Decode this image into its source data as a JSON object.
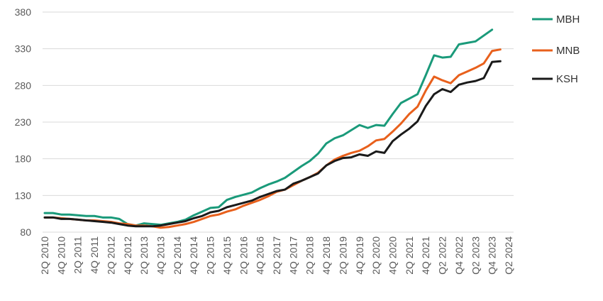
{
  "chart_data": {
    "type": "line",
    "title": "",
    "xlabel": "",
    "ylabel": "",
    "ylim": [
      80,
      380
    ],
    "yticks": [
      80,
      130,
      180,
      230,
      280,
      330,
      380
    ],
    "grid": "horizontal",
    "legend_position": "right",
    "x": [
      "Q2 2010",
      "Q3 2010",
      "Q4 2010",
      "Q1 2011",
      "Q2 2011",
      "Q3 2011",
      "Q4 2011",
      "Q1 2012",
      "Q2 2012",
      "Q3 2012",
      "Q4 2012",
      "Q1 2013",
      "Q2 2013",
      "Q3 2013",
      "Q4 2013",
      "Q1 2014",
      "Q2 2014",
      "Q3 2014",
      "Q4 2014",
      "Q1 2015",
      "Q2 2015",
      "Q3 2015",
      "Q4 2015",
      "Q1 2016",
      "Q2 2016",
      "Q3 2016",
      "Q4 2016",
      "Q1 2017",
      "Q2 2017",
      "Q3 2017",
      "Q4 2017",
      "Q1 2018",
      "Q2 2018",
      "Q3 2018",
      "Q4 2018",
      "Q1 2019",
      "Q2 2019",
      "Q3 2019",
      "Q4 2019",
      "Q1 2020",
      "Q2 2020",
      "Q3 2020",
      "Q4 2020",
      "Q1 2021",
      "Q2 2021",
      "Q3 2021",
      "Q4 2021",
      "Q1 2022",
      "Q2 2022",
      "Q3 2022",
      "Q4 2022",
      "Q1 2023",
      "Q2 2023",
      "Q3 2023",
      "Q4 2023",
      "Q1 2024",
      "Q2 2024"
    ],
    "x_tick_labels": [
      "2Q 2010",
      "4Q 2010",
      "2Q 2011",
      "4Q 2011",
      "2Q 2012",
      "4Q 2012",
      "2Q 2013",
      "4Q 2013",
      "2Q 2014",
      "4Q 2014",
      "2Q 2015",
      "4Q 2015",
      "2Q 2016",
      "4Q 2016",
      "2Q 2017",
      "4Q 2017",
      "2Q 2018",
      "4Q 2018",
      "2Q 2019",
      "4Q 2019",
      "2Q 2020",
      "4Q 2020",
      "2Q 2021",
      "4Q 2021",
      "Q2 2022",
      "Q4 2022",
      "Q2 2023",
      "Q4 2023",
      "Q2 2024"
    ],
    "series": [
      {
        "name": "MBH",
        "color": "#1a9a7a",
        "values": [
          106,
          106,
          104,
          104,
          103,
          102,
          102,
          100,
          100,
          98,
          91,
          89,
          92,
          91,
          90,
          92,
          94,
          97,
          103,
          108,
          113,
          114,
          124,
          128,
          131,
          134,
          140,
          145,
          149,
          154,
          162,
          170,
          177,
          187,
          201,
          208,
          212,
          219,
          226,
          222,
          226,
          225,
          241,
          256,
          262,
          268,
          294,
          321,
          318,
          319,
          336,
          338,
          340,
          348,
          356,
          null,
          null
        ]
      },
      {
        "name": "MNB",
        "color": "#e8601c",
        "values": [
          100,
          100,
          99,
          98,
          97,
          96,
          96,
          95,
          94,
          92,
          91,
          89,
          89,
          88,
          86,
          87,
          89,
          91,
          94,
          98,
          102,
          104,
          108,
          111,
          116,
          120,
          124,
          129,
          135,
          138,
          144,
          150,
          155,
          161,
          171,
          179,
          184,
          188,
          191,
          197,
          205,
          207,
          217,
          228,
          241,
          251,
          273,
          292,
          287,
          283,
          294,
          299,
          304,
          310,
          327,
          329,
          null
        ]
      },
      {
        "name": "KSH",
        "color": "#1a1a1a",
        "values": [
          100,
          100,
          98,
          98,
          97,
          96,
          95,
          94,
          93,
          91,
          89,
          88,
          88,
          88,
          89,
          91,
          93,
          95,
          99,
          102,
          107,
          109,
          114,
          117,
          120,
          123,
          128,
          132,
          136,
          138,
          146,
          150,
          155,
          160,
          171,
          177,
          181,
          182,
          186,
          184,
          190,
          188,
          204,
          213,
          221,
          231,
          252,
          268,
          275,
          271,
          281,
          284,
          286,
          290,
          312,
          313,
          null
        ]
      }
    ]
  }
}
